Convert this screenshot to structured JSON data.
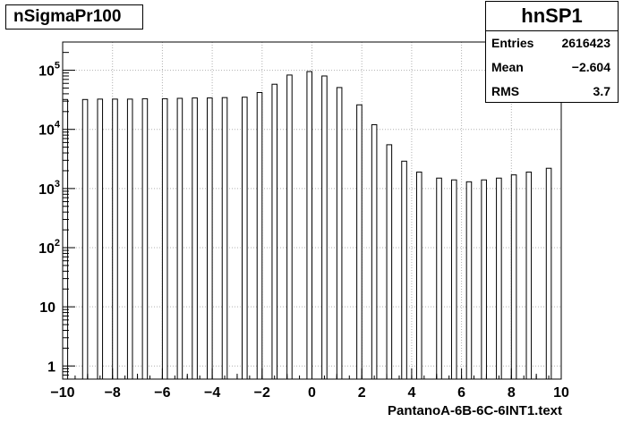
{
  "chart_data": {
    "type": "bar",
    "title": "nSigmaPr100",
    "xlabel": "PantanoA-6B-6C-6INT1.text",
    "ylabel": "",
    "xlim": [
      -10,
      10
    ],
    "ylim": [
      0.6,
      300000
    ],
    "log_y": true,
    "grid": true,
    "x_ticks": [
      -10,
      -8,
      -6,
      -4,
      -2,
      0,
      2,
      4,
      6,
      8,
      10
    ],
    "x_tick_labels": [
      "−10",
      "−8",
      "−6",
      "−4",
      "−2",
      "0",
      "2",
      "4",
      "6",
      "8",
      "10"
    ],
    "y_ticks": [
      {
        "value": 1,
        "base": "1",
        "exp": ""
      },
      {
        "value": 10,
        "base": "10",
        "exp": ""
      },
      {
        "value": 100,
        "base": "10",
        "exp": "2"
      },
      {
        "value": 1000,
        "base": "10",
        "exp": "3"
      },
      {
        "value": 10000,
        "base": "10",
        "exp": "4"
      },
      {
        "value": 100000,
        "base": "10",
        "exp": "5"
      }
    ],
    "bins": [
      {
        "x": -9.9,
        "value": 32000
      },
      {
        "x": -9.1,
        "value": 32000
      },
      {
        "x": -8.5,
        "value": 32500
      },
      {
        "x": -7.9,
        "value": 32500
      },
      {
        "x": -7.3,
        "value": 32500
      },
      {
        "x": -6.7,
        "value": 33000
      },
      {
        "x": -5.9,
        "value": 33000
      },
      {
        "x": -5.3,
        "value": 33500
      },
      {
        "x": -4.7,
        "value": 34000
      },
      {
        "x": -4.1,
        "value": 34000
      },
      {
        "x": -3.5,
        "value": 34500
      },
      {
        "x": -2.7,
        "value": 35000
      },
      {
        "x": -2.1,
        "value": 42000
      },
      {
        "x": -1.5,
        "value": 58000
      },
      {
        "x": -0.9,
        "value": 83000
      },
      {
        "x": -0.1,
        "value": 95000
      },
      {
        "x": 0.5,
        "value": 80000
      },
      {
        "x": 1.1,
        "value": 51000
      },
      {
        "x": 1.9,
        "value": 26000
      },
      {
        "x": 2.5,
        "value": 12000
      },
      {
        "x": 3.1,
        "value": 5500
      },
      {
        "x": 3.7,
        "value": 2900
      },
      {
        "x": 4.3,
        "value": 1900
      },
      {
        "x": 5.1,
        "value": 1500
      },
      {
        "x": 5.7,
        "value": 1400
      },
      {
        "x": 6.3,
        "value": 1300
      },
      {
        "x": 6.9,
        "value": 1400
      },
      {
        "x": 7.5,
        "value": 1500
      },
      {
        "x": 8.1,
        "value": 1700
      },
      {
        "x": 8.7,
        "value": 1900
      },
      {
        "x": 9.5,
        "value": 2200
      }
    ]
  },
  "stats": {
    "title": "hnSP1",
    "rows": [
      {
        "label": "Entries",
        "value": "2616423"
      },
      {
        "label": "Mean",
        "value": "−2.604"
      },
      {
        "label": "RMS",
        "value": "3.7"
      }
    ]
  }
}
